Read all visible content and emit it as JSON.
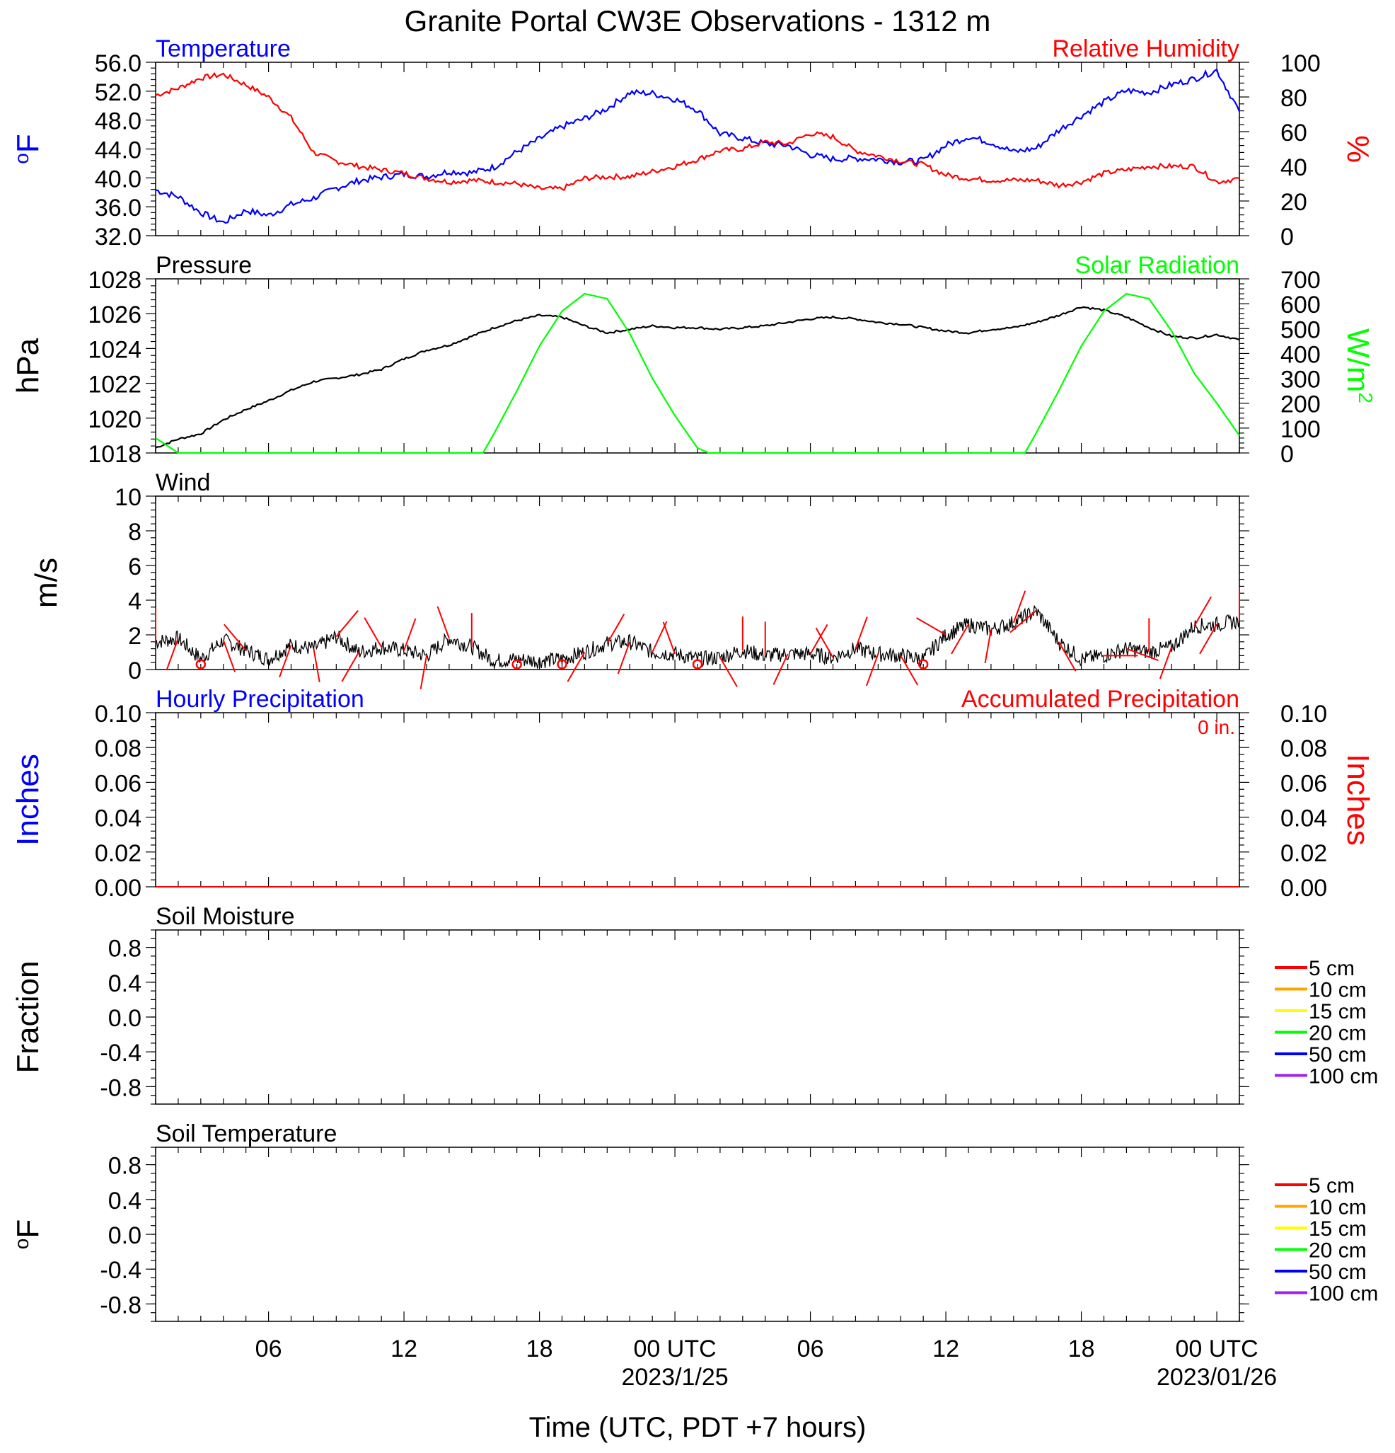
{
  "title": "Granite Portal CW3E Observations - 1312 m",
  "xaxis": {
    "label": "Time (UTC, PDT +7 hours)",
    "tick_labels": [
      "06",
      "12",
      "18",
      "00 UTC",
      "06",
      "12",
      "18",
      "00 UTC"
    ],
    "tick_hours": [
      6,
      12,
      18,
      24,
      30,
      36,
      42,
      48
    ],
    "date_labels": [
      {
        "text": "2023/1/25",
        "hour": 24
      },
      {
        "text": "2023/01/26",
        "hour": 48
      }
    ],
    "range_hours": [
      1,
      49
    ]
  },
  "panels": {
    "temp_rh": {
      "left_title": "Temperature",
      "right_title": "Relative Humidity",
      "left_unit": "oF",
      "right_unit": "%",
      "left_ticks": [
        "56.0",
        "52.0",
        "48.0",
        "44.0",
        "40.0",
        "36.0",
        "32.0"
      ],
      "right_ticks": [
        "100",
        "80",
        "60",
        "40",
        "20",
        "0"
      ]
    },
    "pressure_solar": {
      "left_title": "Pressure",
      "right_title": "Solar Radiation",
      "left_unit": "hPa",
      "right_unit": "W/m2",
      "left_ticks": [
        "1028",
        "1026",
        "1024",
        "1022",
        "1020",
        "1018"
      ],
      "right_ticks": [
        "700",
        "600",
        "500",
        "400",
        "300",
        "200",
        "100",
        "0"
      ]
    },
    "wind": {
      "left_title": "Wind",
      "left_unit": "m/s",
      "left_ticks": [
        "10",
        "8",
        "6",
        "4",
        "2",
        "0"
      ]
    },
    "precip": {
      "left_title": "Hourly Precipitation",
      "right_title": "Accumulated Precipitation",
      "left_unit": "Inches",
      "right_unit": "Inches",
      "accum_note": "0 in.",
      "left_ticks": [
        "0.10",
        "0.08",
        "0.06",
        "0.04",
        "0.02",
        "0.00"
      ],
      "right_ticks": [
        "0.10",
        "0.08",
        "0.06",
        "0.04",
        "0.02",
        "0.00"
      ]
    },
    "soil_moisture": {
      "left_title": "Soil Moisture",
      "left_unit": "Fraction",
      "left_ticks": [
        "0.8",
        "0.4",
        "0.0",
        "-0.4",
        "-0.8"
      ],
      "legend": [
        "5 cm",
        "10 cm",
        "15 cm",
        "20 cm",
        "50 cm",
        "100 cm"
      ]
    },
    "soil_temp": {
      "left_title": "Soil Temperature",
      "left_unit": "oF",
      "left_ticks": [
        "0.8",
        "0.4",
        "0.0",
        "-0.4",
        "-0.8"
      ],
      "legend": [
        "5 cm",
        "10 cm",
        "15 cm",
        "20 cm",
        "50 cm",
        "100 cm"
      ]
    }
  },
  "colors": {
    "temperature": "#0000ff",
    "humidity": "#ff0000",
    "pressure": "#000000",
    "solar": "#00ff00",
    "wind": "#000000",
    "barb": "#ff0000",
    "precip_hourly": "#0000ff",
    "precip_accum": "#ff0000",
    "legend": [
      "#ff0000",
      "#ffa500",
      "#ffff00",
      "#00ff00",
      "#0000ff",
      "#a020f0"
    ]
  },
  "chart_data": [
    {
      "type": "line",
      "title": "Temperature",
      "ylabel": "oF",
      "ylim": [
        32,
        56
      ],
      "series": [
        {
          "name": "Temperature",
          "x": [
            1,
            2,
            3,
            4,
            5,
            6,
            7,
            8,
            9,
            10,
            11,
            12,
            13,
            14,
            15,
            16,
            17,
            18,
            19,
            20,
            21,
            22,
            23,
            24,
            25,
            26,
            27,
            28,
            29,
            30,
            31,
            32,
            33,
            34,
            35,
            36,
            37,
            38,
            39,
            40,
            41,
            42,
            43,
            44,
            45,
            46,
            47,
            48,
            49
          ],
          "values": [
            38.3,
            37.4,
            35.2,
            33.8,
            35.5,
            34.8,
            36.3,
            37.2,
            38.6,
            39.6,
            40.1,
            40.5,
            40.2,
            40.9,
            40.7,
            41.5,
            43.6,
            45.4,
            47.1,
            48.2,
            49.6,
            51.8,
            51.7,
            50.9,
            49.4,
            46.1,
            45.5,
            44.7,
            44.5,
            43.2,
            42.6,
            42.7,
            42.6,
            42.2,
            42.4,
            44.5,
            45.7,
            44.9,
            43.6,
            44.1,
            46.6,
            48.6,
            50.5,
            52.1,
            51.8,
            52.9,
            53.7,
            54.9,
            49.2
          ]
        }
      ]
    },
    {
      "type": "line",
      "title": "Relative Humidity",
      "ylabel": "%",
      "ylim": [
        0,
        100
      ],
      "series": [
        {
          "name": "Relative Humidity",
          "x": [
            1,
            2,
            3,
            4,
            5,
            6,
            7,
            8,
            9,
            10,
            11,
            12,
            13,
            14,
            15,
            16,
            17,
            18,
            19,
            20,
            21,
            22,
            23,
            24,
            25,
            26,
            27,
            28,
            29,
            30,
            31,
            32,
            33,
            34,
            35,
            36,
            37,
            38,
            39,
            40,
            41,
            42,
            43,
            44,
            45,
            46,
            47,
            48,
            49
          ],
          "values": [
            81,
            85,
            91,
            93,
            87,
            80,
            68,
            48,
            43,
            40,
            38,
            36,
            33,
            31,
            32,
            31,
            30,
            27,
            27,
            33,
            34,
            34,
            37,
            40,
            44,
            49,
            50,
            54,
            53,
            59,
            57,
            49,
            46,
            43,
            41,
            35,
            33,
            32,
            32,
            32,
            29,
            31,
            36,
            38,
            40,
            40,
            40,
            31,
            33
          ]
        }
      ]
    },
    {
      "type": "line",
      "title": "Pressure",
      "ylabel": "hPa",
      "ylim": [
        1018,
        1028
      ],
      "series": [
        {
          "name": "Pressure",
          "x": [
            1,
            2,
            3,
            4,
            5,
            6,
            7,
            8,
            9,
            10,
            11,
            12,
            13,
            14,
            15,
            16,
            17,
            18,
            19,
            20,
            21,
            22,
            23,
            24,
            25,
            26,
            27,
            28,
            29,
            30,
            31,
            32,
            33,
            34,
            35,
            36,
            37,
            38,
            39,
            40,
            41,
            42,
            43,
            44,
            45,
            46,
            47,
            48,
            49
          ],
          "values": [
            1018.3,
            1018.8,
            1019.1,
            1019.9,
            1020.5,
            1021.0,
            1021.6,
            1022.1,
            1022.3,
            1022.5,
            1022.8,
            1023.4,
            1023.9,
            1024.2,
            1024.7,
            1025.2,
            1025.6,
            1025.9,
            1025.8,
            1025.3,
            1024.9,
            1025.1,
            1025.3,
            1025.2,
            1025.2,
            1025.1,
            1025.2,
            1025.3,
            1025.5,
            1025.7,
            1025.8,
            1025.7,
            1025.5,
            1025.4,
            1025.2,
            1025.0,
            1024.9,
            1025.1,
            1025.2,
            1025.5,
            1025.9,
            1026.4,
            1026.2,
            1025.8,
            1025.2,
            1024.7,
            1024.6,
            1024.8,
            1024.5
          ]
        }
      ]
    },
    {
      "type": "line",
      "title": "Solar Radiation",
      "ylabel": "W/m2",
      "ylim": [
        0,
        700
      ],
      "series": [
        {
          "name": "Solar Radiation",
          "x": [
            1,
            2,
            3,
            4,
            5,
            6,
            7,
            8,
            9,
            10,
            11,
            12,
            13,
            14,
            15,
            15.5,
            16,
            17,
            18,
            19,
            20,
            21,
            22,
            23,
            24,
            25,
            25.5,
            26,
            27,
            28,
            29,
            30,
            31,
            32,
            33,
            34,
            35,
            36,
            37,
            38,
            39,
            39.5,
            40,
            41,
            42,
            43,
            44,
            45,
            46,
            47,
            48,
            49
          ],
          "values": [
            60,
            0,
            0,
            0,
            0,
            0,
            0,
            0,
            0,
            0,
            0,
            0,
            0,
            0,
            0,
            0,
            80,
            250,
            430,
            570,
            640,
            620,
            480,
            300,
            150,
            20,
            0,
            0,
            0,
            0,
            0,
            0,
            0,
            0,
            0,
            0,
            0,
            0,
            0,
            0,
            0,
            0,
            80,
            250,
            430,
            570,
            640,
            620,
            490,
            320,
            200,
            70
          ]
        }
      ]
    },
    {
      "type": "line",
      "title": "Wind",
      "ylabel": "m/s",
      "ylim": [
        0,
        10
      ],
      "series": [
        {
          "name": "Wind",
          "x": [
            1,
            2,
            3,
            4,
            5,
            6,
            7,
            8,
            9,
            10,
            11,
            12,
            13,
            14,
            15,
            16,
            17,
            18,
            19,
            20,
            21,
            22,
            23,
            24,
            25,
            26,
            27,
            28,
            29,
            30,
            31,
            32,
            33,
            34,
            35,
            36,
            37,
            38,
            39,
            40,
            41,
            42,
            43,
            44,
            45,
            46,
            47,
            48,
            49
          ],
          "values": [
            1.6,
            1.8,
            0.6,
            1.7,
            1.1,
            0.6,
            1.4,
            1.2,
            1.9,
            1.0,
            1.3,
            1.1,
            0.8,
            1.8,
            1.3,
            0.5,
            0.6,
            0.5,
            0.6,
            1.0,
            1.5,
            1.6,
            1.0,
            0.9,
            0.6,
            0.7,
            1.1,
            0.8,
            0.9,
            0.9,
            0.7,
            1.2,
            0.9,
            0.8,
            0.6,
            2.0,
            2.6,
            2.3,
            2.7,
            3.4,
            1.6,
            0.6,
            0.8,
            1.2,
            1.0,
            1.3,
            2.5,
            2.6,
            2.8
          ]
        }
      ]
    },
    {
      "type": "line",
      "title": "Hourly Precipitation",
      "ylabel": "Inches",
      "ylim": [
        0,
        0.1
      ],
      "series": [
        {
          "name": "Hourly Precipitation",
          "x": [
            1,
            49
          ],
          "values": [
            0,
            0
          ]
        },
        {
          "name": "Accumulated Precipitation",
          "x": [
            1,
            49
          ],
          "values": [
            0,
            0
          ]
        }
      ]
    },
    {
      "type": "line",
      "title": "Soil Moisture",
      "ylabel": "Fraction",
      "ylim": [
        -1,
        1
      ],
      "series": [
        {
          "name": "5 cm",
          "values": []
        },
        {
          "name": "10 cm",
          "values": []
        },
        {
          "name": "15 cm",
          "values": []
        },
        {
          "name": "20 cm",
          "values": []
        },
        {
          "name": "50 cm",
          "values": []
        },
        {
          "name": "100 cm",
          "values": []
        }
      ]
    },
    {
      "type": "line",
      "title": "Soil Temperature",
      "ylabel": "oF",
      "ylim": [
        -1,
        1
      ],
      "series": [
        {
          "name": "5 cm",
          "values": []
        },
        {
          "name": "10 cm",
          "values": []
        },
        {
          "name": "15 cm",
          "values": []
        },
        {
          "name": "20 cm",
          "values": []
        },
        {
          "name": "50 cm",
          "values": []
        },
        {
          "name": "100 cm",
          "values": []
        }
      ]
    }
  ]
}
